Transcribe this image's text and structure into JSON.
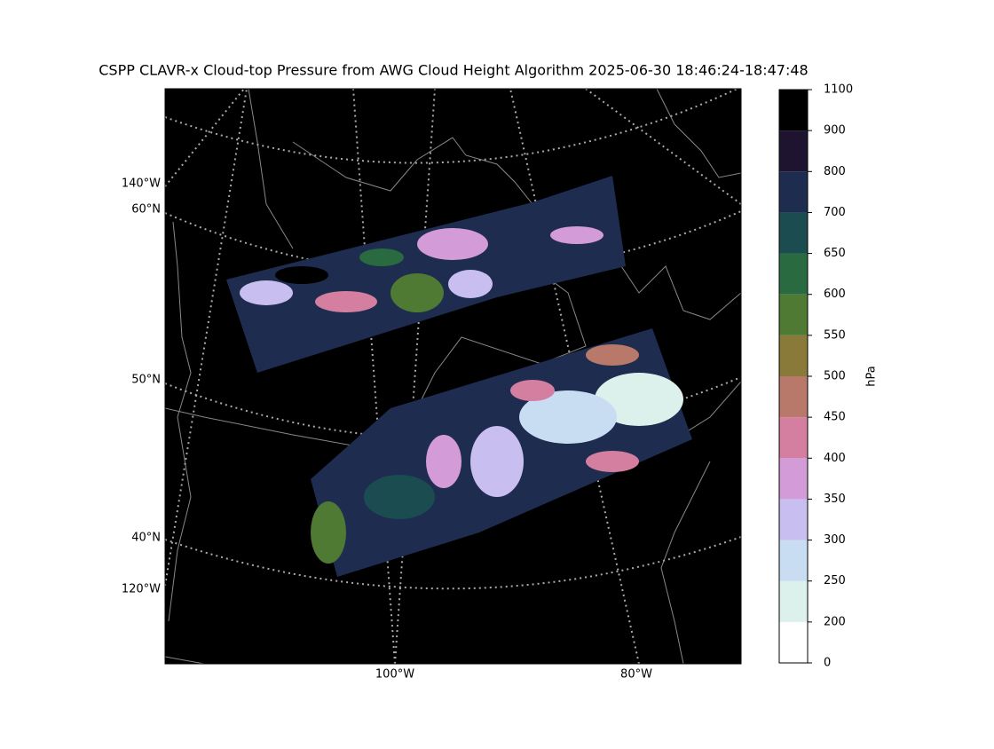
{
  "title": "CSPP CLAVR-x Cloud-top Pressure from AWG Cloud Height Algorithm 2025-06-30 18:46:24-18:47:48",
  "map": {
    "left_labels": [
      "140°W",
      "60°N",
      "50°N",
      "40°N",
      "120°W"
    ],
    "bottom_labels": [
      "100°W",
      "80°W"
    ]
  },
  "colorbar": {
    "label": "hPa",
    "boundaries": [
      0,
      200,
      250,
      300,
      350,
      400,
      450,
      500,
      550,
      600,
      650,
      700,
      800,
      900,
      1100
    ],
    "colors": [
      "#ffffff",
      "#dcf0ec",
      "#c8dcf2",
      "#c8bef0",
      "#d39bd8",
      "#d47fa0",
      "#b8786a",
      "#8a7a3a",
      "#4f7a33",
      "#296a40",
      "#1a4c50",
      "#1e2c50",
      "#1e1430",
      "#000000"
    ]
  }
}
